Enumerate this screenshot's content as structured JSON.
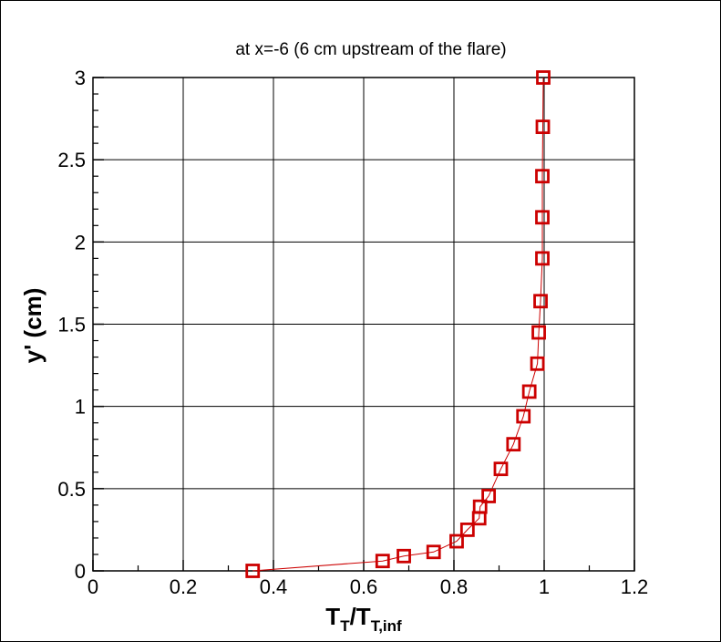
{
  "chart_data": {
    "type": "line",
    "title": "at x=-6 (6 cm upstream of the flare)",
    "xlabel": {
      "main": "T",
      "sub1": "T",
      "slash": "/T",
      "sub2": "T,inf"
    },
    "ylabel": "y' (cm)",
    "xlim": [
      0,
      1.2
    ],
    "ylim": [
      0,
      3
    ],
    "xticks": [
      "0",
      "0.2",
      "0.4",
      "0.6",
      "0.8",
      "1",
      "1.2"
    ],
    "yticks": [
      "0",
      "0.5",
      "1",
      "1.5",
      "2",
      "2.5",
      "3"
    ],
    "grid": true,
    "legend": "none",
    "series": [
      {
        "line_color": "#cc0000",
        "marker": "square",
        "marker_color": "#cc0000",
        "x": [
          0.354,
          0.642,
          0.689,
          0.755,
          0.806,
          0.83,
          0.856,
          0.858,
          0.877,
          0.904,
          0.932,
          0.954,
          0.967,
          0.985,
          0.988,
          0.992,
          0.996,
          0.996,
          0.996,
          0.997,
          0.998
        ],
        "y": [
          0.0,
          0.06,
          0.09,
          0.115,
          0.18,
          0.25,
          0.32,
          0.39,
          0.455,
          0.62,
          0.77,
          0.94,
          1.09,
          1.26,
          1.45,
          1.64,
          1.9,
          2.15,
          2.4,
          2.7,
          3.0
        ]
      }
    ]
  }
}
